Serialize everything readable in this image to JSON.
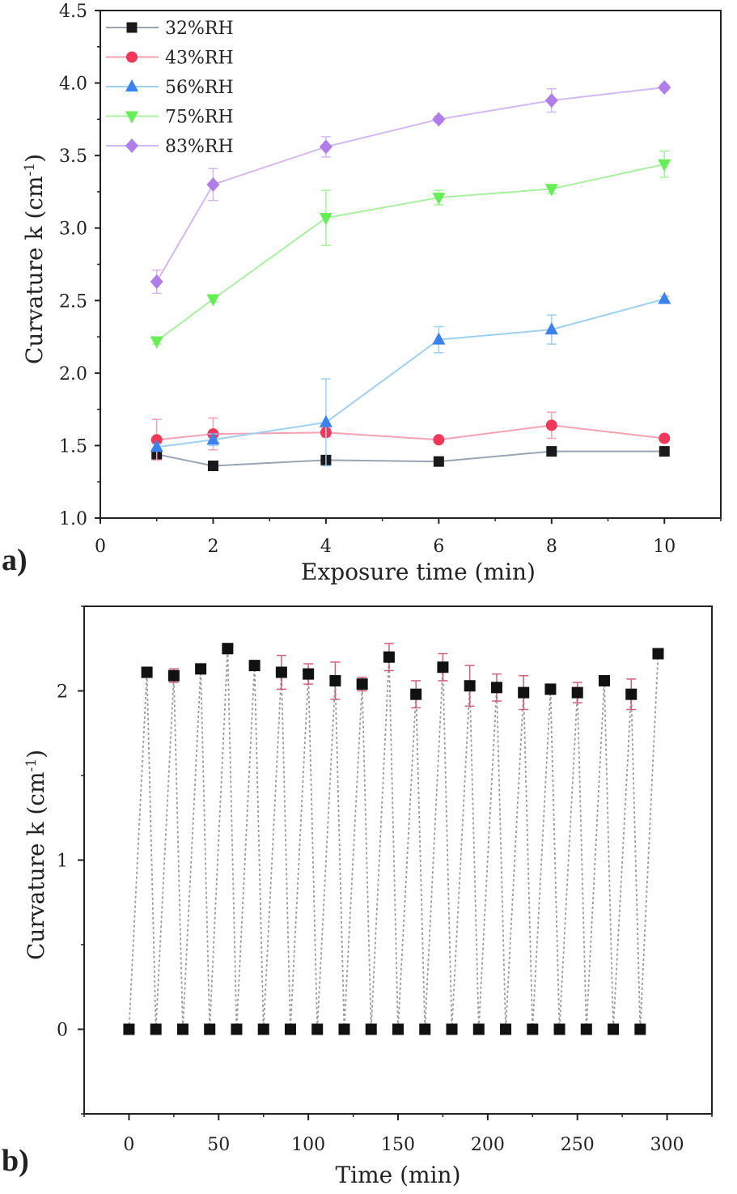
{
  "chart_data": [
    {
      "panel_label": "a)",
      "type": "line",
      "xlabel": "Exposure time (min)",
      "ylabel_main": "Curvature k (cm",
      "ylabel_sup": "-1",
      "ylabel_close": ")",
      "xlim": [
        0,
        11
      ],
      "ylim": [
        1.0,
        4.5
      ],
      "xticks": [
        0,
        2,
        4,
        6,
        8,
        10
      ],
      "yticks": [
        1.0,
        1.5,
        2.0,
        2.5,
        3.0,
        3.5,
        4.0,
        4.5
      ],
      "x": [
        1,
        2,
        4,
        6,
        8,
        10
      ],
      "legend_position": "top-left",
      "grid": false,
      "series": [
        {
          "name": "32%RH",
          "marker": "square",
          "color": "#1a1a1a",
          "line_color": "#9aa4b4",
          "values": [
            1.44,
            1.36,
            1.4,
            1.39,
            1.46,
            1.46
          ],
          "errors": [
            0.03,
            0.02,
            0.03,
            0.02,
            0.02,
            0.02
          ]
        },
        {
          "name": "43%RH",
          "marker": "circle",
          "color": "#f0385a",
          "line_color": "#f4a3b3",
          "values": [
            1.54,
            1.58,
            1.59,
            1.54,
            1.64,
            1.55
          ],
          "errors": [
            0.14,
            0.11,
            0.03,
            0.02,
            0.09,
            0.02
          ]
        },
        {
          "name": "56%RH",
          "marker": "triangle-up",
          "color": "#3b82f0",
          "line_color": "#9fd0ee",
          "values": [
            1.49,
            1.54,
            1.66,
            2.23,
            2.3,
            2.51
          ],
          "errors": [
            0.02,
            0.04,
            0.3,
            0.09,
            0.1,
            0.02
          ]
        },
        {
          "name": "75%RH",
          "marker": "triangle-down",
          "color": "#66ee55",
          "line_color": "#a9f0a0",
          "values": [
            2.22,
            2.51,
            3.07,
            3.21,
            3.27,
            3.44
          ],
          "errors": [
            0.02,
            0.02,
            0.19,
            0.05,
            0.03,
            0.09
          ]
        },
        {
          "name": "83%RH",
          "marker": "diamond",
          "color": "#b07ee8",
          "line_color": "#d4b8f2",
          "values": [
            2.63,
            3.3,
            3.56,
            3.75,
            3.88,
            3.97
          ],
          "errors": [
            0.08,
            0.11,
            0.07,
            0.02,
            0.08,
            0.02
          ]
        }
      ]
    },
    {
      "panel_label": "b)",
      "type": "line",
      "xlabel": "Time (min)",
      "ylabel_main": "Curvature k (cm",
      "ylabel_sup": "-1",
      "ylabel_close": ")",
      "xlim": [
        -25,
        325
      ],
      "ylim": [
        -0.5,
        2.5
      ],
      "xticks": [
        0,
        50,
        100,
        150,
        200,
        250,
        300
      ],
      "yticks": [
        0,
        1,
        2
      ],
      "grid": false,
      "marker_color": "#111111",
      "line_color": "#9a9a9a",
      "error_color": "#d0607a",
      "x": [
        0,
        10,
        15,
        25,
        30,
        40,
        45,
        55,
        60,
        70,
        75,
        85,
        90,
        100,
        105,
        115,
        120,
        130,
        135,
        145,
        150,
        160,
        165,
        175,
        180,
        190,
        195,
        205,
        210,
        220,
        225,
        235,
        240,
        250,
        255,
        265,
        270,
        280,
        285,
        295
      ],
      "y": [
        0,
        2.11,
        0,
        2.09,
        0,
        2.13,
        0,
        2.25,
        0,
        2.15,
        0,
        2.11,
        0,
        2.1,
        0,
        2.06,
        0,
        2.04,
        0,
        2.2,
        0,
        1.98,
        0,
        2.14,
        0,
        2.03,
        0,
        2.02,
        0,
        1.99,
        0,
        2.01,
        0,
        1.99,
        0,
        2.06,
        0,
        1.98,
        0,
        2.22
      ],
      "errors": [
        0,
        0.02,
        0,
        0.04,
        0,
        0.02,
        0,
        0.03,
        0,
        0.02,
        0,
        0.1,
        0,
        0.06,
        0,
        0.11,
        0,
        0.04,
        0,
        0.08,
        0,
        0.08,
        0,
        0.08,
        0,
        0.12,
        0,
        0.08,
        0,
        0.1,
        0,
        0.02,
        0,
        0.06,
        0,
        0.02,
        0,
        0.09,
        0,
        0.02
      ]
    }
  ]
}
